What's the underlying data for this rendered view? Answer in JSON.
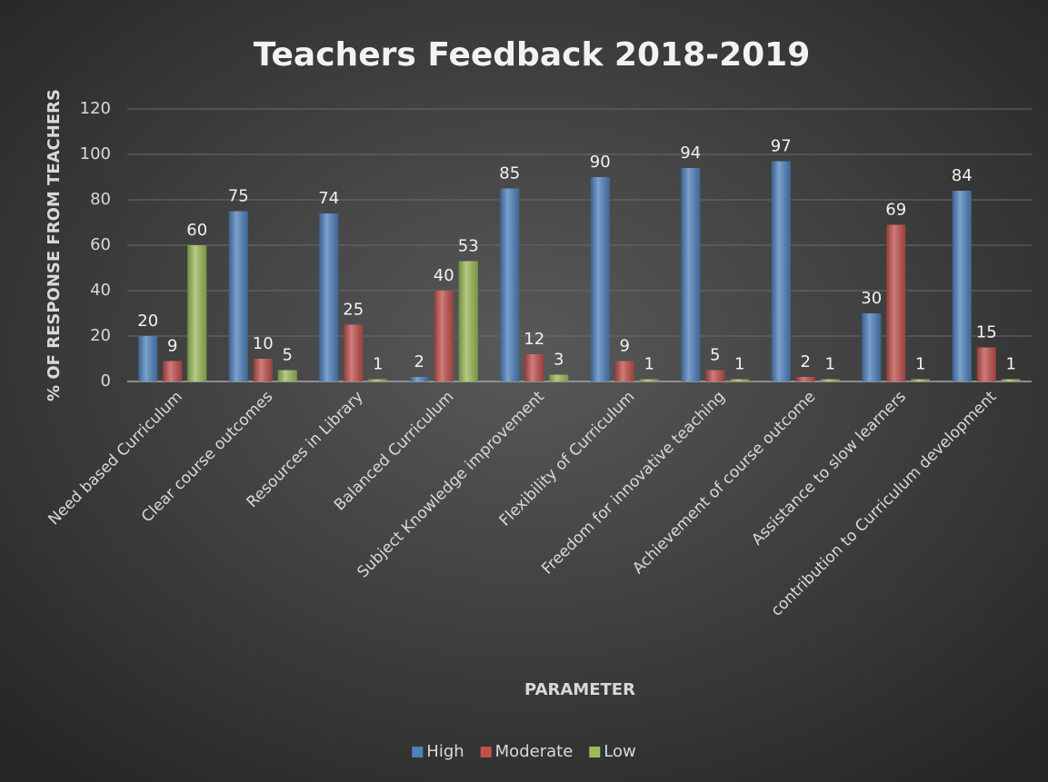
{
  "chart_data": {
    "type": "bar",
    "title": "Teachers Feedback 2018-2019",
    "y_label": "% OF RESPONSE FROM TEACHERS",
    "x_label": "PARAMETER",
    "categories": [
      "Need based Curriculum",
      "Clear course outcomes",
      "Resources in Library",
      "Balanced Curriculum",
      "Subject Knowledge improvement",
      "Flexibility of Curriculum",
      "Freedom for innovative teaching",
      "Achievement of course outcome",
      "Assistance to slow learners",
      "contribution to Curriculum development"
    ],
    "series": [
      {
        "name": "High",
        "color": "#4f81bd",
        "values": [
          20,
          75,
          74,
          2,
          85,
          90,
          94,
          97,
          30,
          84
        ]
      },
      {
        "name": "Moderate",
        "color": "#c0504d",
        "values": [
          9,
          10,
          25,
          40,
          12,
          9,
          5,
          2,
          69,
          15
        ]
      },
      {
        "name": "Low",
        "color": "#9bbb59",
        "values": [
          60,
          5,
          1,
          53,
          3,
          1,
          1,
          1,
          1,
          1
        ]
      }
    ],
    "ylim": [
      0,
      120
    ],
    "yticks": [
      0,
      20,
      40,
      60,
      80,
      100,
      120
    ],
    "grid": true,
    "legend": "bottom"
  }
}
